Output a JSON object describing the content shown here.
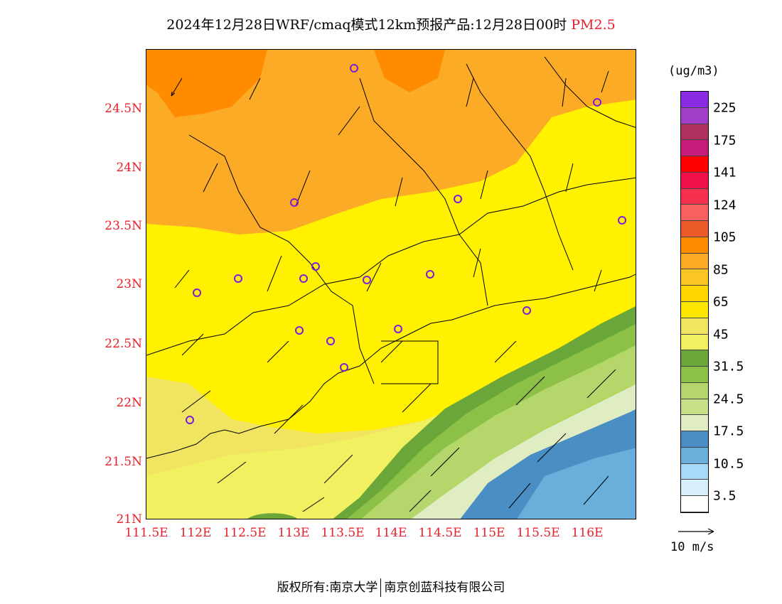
{
  "title": {
    "main": "2024年12月28日WRF/cmaq模式12km预报产品:12月28日00时",
    "variable": "PM2.5"
  },
  "axes": {
    "y_ticks": [
      "24.5N",
      "24N",
      "23.5N",
      "23N",
      "22.5N",
      "22N",
      "21.5N",
      "21N"
    ],
    "x_ticks": [
      "111.5E",
      "112E",
      "112.5E",
      "113E",
      "113.5E",
      "114E",
      "114.5E",
      "115E",
      "115.5E",
      "116E"
    ]
  },
  "legend": {
    "unit": "(ug/m3)",
    "labels": [
      "225",
      "175",
      "141",
      "124",
      "105",
      "85",
      "65",
      "45",
      "31.5",
      "24.5",
      "17.5",
      "10.5",
      "3.5"
    ],
    "colors": [
      "#8a2be2",
      "#a040c8",
      "#b03060",
      "#c81a78",
      "#ff0000",
      "#f0104a",
      "#f4304e",
      "#f86060",
      "#ec5a2a",
      "#ff8c00",
      "#fbab26",
      "#fdc623",
      "#ffd700",
      "#ffe600",
      "#f0e460",
      "#f0f060",
      "#6aa63a",
      "#8cc046",
      "#b4d66a",
      "#c8e088",
      "#e0ecc2",
      "#4a8ec4",
      "#6aaedc",
      "#a6daf6",
      "#d6eff8",
      "#ffffff"
    ]
  },
  "wind": {
    "label": "10 m/s"
  },
  "credit": {
    "left": "版权所有:南京大学",
    "right": "南京创蓝科技有限公司"
  },
  "colors": {
    "accent": "#e8202a",
    "station": "#7a1fd6"
  }
}
